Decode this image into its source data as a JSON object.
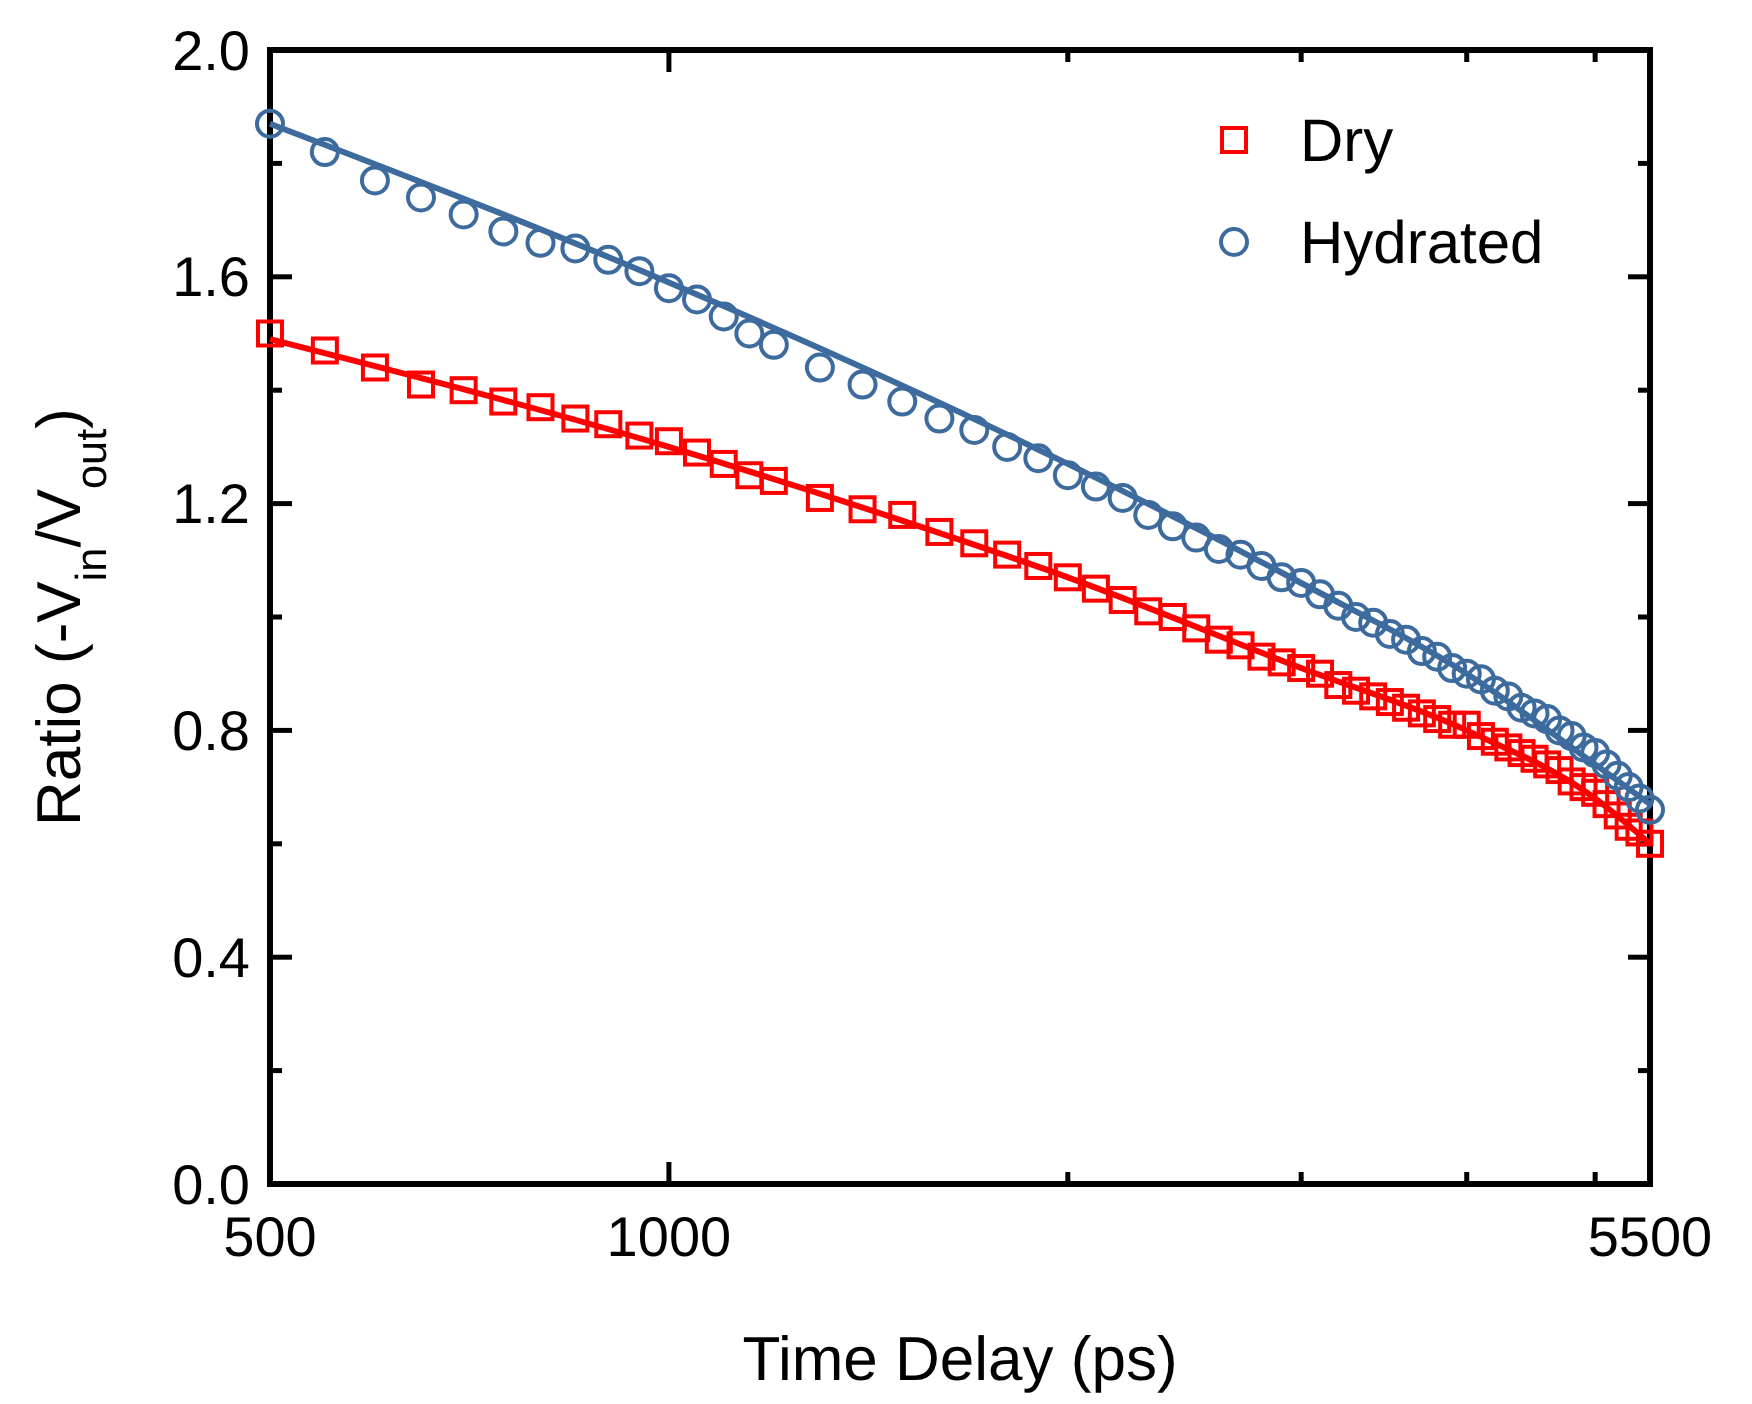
{
  "chart_data": {
    "type": "scatter",
    "xlabel": "Time Delay (ps)",
    "ylabel": "Ratio (-V$_{in}$/V$_{out}$)",
    "log": "x",
    "xlim": [
      500,
      5500
    ],
    "xticks": [
      500,
      1000,
      {
        "value": 2000,
        "label": null
      },
      {
        "value": 3000,
        "label": null
      },
      {
        "value": 4000,
        "label": null
      },
      {
        "value": 5000,
        "label": null
      },
      5500
    ],
    "ylim": [
      0,
      2
    ],
    "yticks": [
      {
        "value": 0,
        "label": "0.0"
      },
      {
        "value": 0.2,
        "label": null
      },
      0.4,
      {
        "value": 0.6,
        "label": null
      },
      0.8,
      {
        "value": 1.0,
        "label": null
      },
      1.2,
      {
        "value": 1.4,
        "label": null
      },
      1.6,
      {
        "value": 1.8,
        "label": null
      },
      {
        "value": 2.0,
        "label": "2.0"
      }
    ],
    "grid": false,
    "legend": "top right",
    "series": [
      {
        "name": "Dry",
        "type": "scatter",
        "marker": "square",
        "color": "#ff0000",
        "x": [
          500,
          550,
          600,
          650,
          700,
          750,
          800,
          850,
          900,
          950,
          1000,
          1050,
          1100,
          1150,
          1200,
          1300,
          1400,
          1500,
          1600,
          1700,
          1800,
          1900,
          2000,
          2100,
          2200,
          2300,
          2400,
          2500,
          2600,
          2700,
          2800,
          2900,
          3000,
          3100,
          3200,
          3300,
          3400,
          3500,
          3600,
          3700,
          3800,
          3900,
          4000,
          4100,
          4200,
          4300,
          4400,
          4500,
          4600,
          4700,
          4800,
          4900,
          5000,
          5100,
          5200,
          5300,
          5400,
          5500
        ],
        "values": [
          1.5,
          1.47,
          1.44,
          1.41,
          1.4,
          1.38,
          1.37,
          1.35,
          1.34,
          1.32,
          1.31,
          1.29,
          1.27,
          1.25,
          1.24,
          1.21,
          1.19,
          1.18,
          1.15,
          1.13,
          1.11,
          1.09,
          1.07,
          1.05,
          1.03,
          1.01,
          1.0,
          0.98,
          0.96,
          0.95,
          0.93,
          0.92,
          0.91,
          0.9,
          0.88,
          0.87,
          0.86,
          0.85,
          0.84,
          0.83,
          0.82,
          0.81,
          0.81,
          0.79,
          0.78,
          0.77,
          0.76,
          0.75,
          0.74,
          0.73,
          0.71,
          0.7,
          0.69,
          0.67,
          0.65,
          0.63,
          0.62,
          0.6
        ]
      },
      {
        "name": "Hydrated",
        "type": "scatter",
        "marker": "circle",
        "color": "#3d6b9e",
        "x": [
          500,
          550,
          600,
          650,
          700,
          750,
          800,
          850,
          900,
          950,
          1000,
          1050,
          1100,
          1150,
          1200,
          1300,
          1400,
          1500,
          1600,
          1700,
          1800,
          1900,
          2000,
          2100,
          2200,
          2300,
          2400,
          2500,
          2600,
          2700,
          2800,
          2900,
          3000,
          3100,
          3200,
          3300,
          3400,
          3500,
          3600,
          3700,
          3800,
          3900,
          4000,
          4100,
          4200,
          4300,
          4400,
          4500,
          4600,
          4700,
          4800,
          4900,
          5000,
          5100,
          5200,
          5300,
          5400,
          5500
        ],
        "values": [
          1.87,
          1.82,
          1.77,
          1.74,
          1.71,
          1.68,
          1.66,
          1.65,
          1.63,
          1.61,
          1.58,
          1.56,
          1.53,
          1.5,
          1.48,
          1.44,
          1.41,
          1.38,
          1.35,
          1.33,
          1.3,
          1.28,
          1.25,
          1.23,
          1.21,
          1.18,
          1.16,
          1.14,
          1.12,
          1.11,
          1.09,
          1.07,
          1.06,
          1.04,
          1.02,
          1.0,
          0.99,
          0.97,
          0.96,
          0.94,
          0.93,
          0.91,
          0.9,
          0.89,
          0.87,
          0.86,
          0.84,
          0.83,
          0.82,
          0.8,
          0.79,
          0.77,
          0.76,
          0.74,
          0.72,
          0.7,
          0.68,
          0.66
        ]
      },
      {
        "type": "line",
        "marker": "none",
        "color": "#ff0000",
        "x": [
          500,
          1000,
          1500,
          2000,
          3000,
          4000,
          5000,
          5500
        ],
        "values": [
          1.49,
          1.3,
          1.17,
          1.07,
          0.91,
          0.8,
          0.68,
          0.6
        ]
      },
      {
        "type": "line",
        "marker": "none",
        "color": "#3d6b9e",
        "x": [
          500,
          1000,
          2000,
          3000,
          4000,
          5000,
          5500
        ],
        "values": [
          1.87,
          1.59,
          1.27,
          1.06,
          0.9,
          0.74,
          0.67
        ]
      }
    ]
  }
}
